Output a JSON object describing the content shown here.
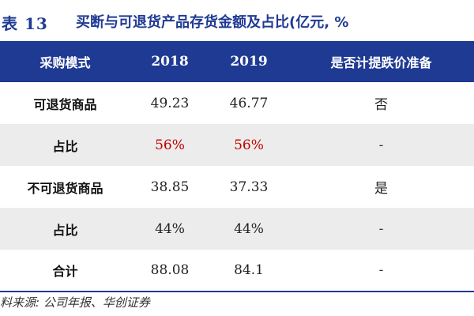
{
  "title": {
    "prefix": "表 13",
    "text": "买断与可退货产品存货金额及占比(亿元, %"
  },
  "table": {
    "headers": [
      "采购模式",
      "2018",
      "2019",
      "是否计提跌价准备"
    ],
    "rows": [
      [
        "可退货商品",
        "49.23",
        "46.77",
        "否"
      ],
      [
        "占比",
        "56%",
        "56%",
        "-"
      ],
      [
        "不可退货商品",
        "38.85",
        "37.33",
        "是"
      ],
      [
        "占比",
        "44%",
        "44%",
        "-"
      ],
      [
        "合计",
        "88.08",
        "84.1",
        "-"
      ]
    ],
    "header_color": "#1f3a93",
    "shade_color": "#ececec",
    "highlight_color": "#c00000"
  },
  "source": "料来源: 公司年报、华创证券"
}
